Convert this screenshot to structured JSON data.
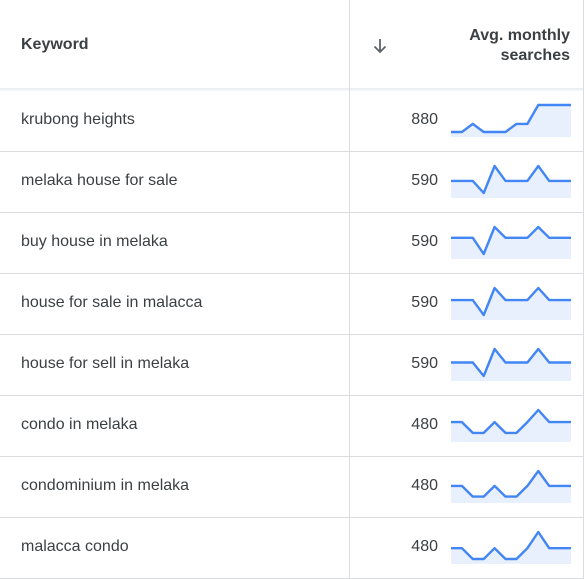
{
  "header": {
    "keyword_label": "Keyword",
    "sort_icon": "arrow-down-icon",
    "avg_label_line1": "Avg. monthly",
    "avg_label_line2": "searches"
  },
  "colors": {
    "line": "#4285f4",
    "fill": "#e8f0fe",
    "border": "#dadce0",
    "text": "#3c4043"
  },
  "rows": [
    {
      "keyword": "krubong heights",
      "volume": "880",
      "trend": [
        0,
        0,
        0.3,
        0,
        0,
        0,
        0.3,
        0.3,
        1,
        1,
        1,
        1
      ]
    },
    {
      "keyword": "melaka house for sale",
      "volume": "590",
      "trend": [
        0.45,
        0.45,
        0.45,
        0,
        1,
        0.45,
        0.45,
        0.45,
        1,
        0.45,
        0.45,
        0.45
      ]
    },
    {
      "keyword": "buy house in melaka",
      "volume": "590",
      "trend": [
        0.6,
        0.6,
        0.6,
        0,
        1,
        0.6,
        0.6,
        0.6,
        1,
        0.6,
        0.6,
        0.6
      ]
    },
    {
      "keyword": "house for sale in malacca",
      "volume": "590",
      "trend": [
        0.55,
        0.55,
        0.55,
        0,
        1,
        0.55,
        0.55,
        0.55,
        1,
        0.55,
        0.55,
        0.55
      ]
    },
    {
      "keyword": "house for sell in melaka",
      "volume": "590",
      "trend": [
        0.5,
        0.5,
        0.5,
        0,
        1,
        0.5,
        0.5,
        0.5,
        1,
        0.5,
        0.5,
        0.5
      ]
    },
    {
      "keyword": "condo in melaka",
      "volume": "480",
      "trend": [
        0.55,
        0.55,
        0.15,
        0.15,
        0.55,
        0.15,
        0.15,
        0.55,
        1,
        0.55,
        0.55,
        0.55
      ]
    },
    {
      "keyword": "condominium in melaka",
      "volume": "480",
      "trend": [
        0.45,
        0.45,
        0.05,
        0.05,
        0.45,
        0.05,
        0.05,
        0.45,
        1,
        0.45,
        0.45,
        0.45
      ]
    },
    {
      "keyword": "malacca condo",
      "volume": "480",
      "trend": [
        0.4,
        0.4,
        0,
        0,
        0.4,
        0,
        0,
        0.4,
        1,
        0.4,
        0.4,
        0.4
      ]
    }
  ]
}
